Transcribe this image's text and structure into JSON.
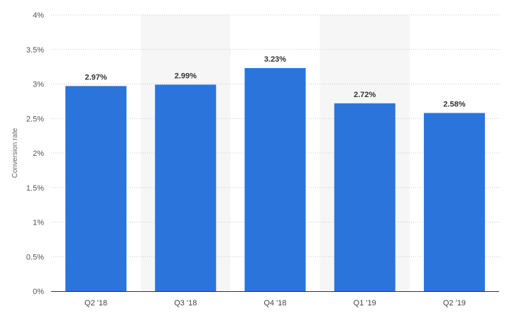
{
  "chart_data": {
    "type": "bar",
    "categories": [
      "Q2 '18",
      "Q3 '18",
      "Q4 '18",
      "Q1 '19",
      "Q2 '19"
    ],
    "values": [
      2.97,
      2.99,
      3.23,
      2.72,
      2.58
    ],
    "value_labels": [
      "2.97%",
      "2.99%",
      "3.23%",
      "2.72%",
      "2.58%"
    ],
    "title": "",
    "xlabel": "",
    "ylabel": "Conversion rate",
    "ylim": [
      0,
      4
    ],
    "yticks": [
      0,
      0.5,
      1,
      1.5,
      2,
      2.5,
      3,
      3.5,
      4
    ],
    "ytick_labels": [
      "0%",
      "0.5%",
      "1%",
      "1.5%",
      "2%",
      "2.5%",
      "3%",
      "3.5%",
      "4%"
    ],
    "grid": true,
    "alternate_band_shading": true,
    "bar_color": "#2a74dc",
    "band_color": "#f6f6f6"
  }
}
